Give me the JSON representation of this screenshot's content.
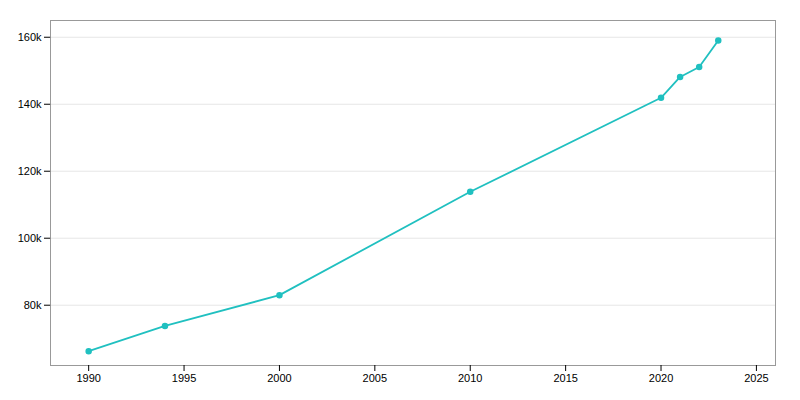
{
  "chart_data": {
    "type": "line",
    "x": [
      1990,
      1994,
      2000,
      2010,
      2020,
      2021,
      2022,
      2023
    ],
    "values": [
      66270,
      73800,
      83000,
      113883,
      141918,
      148146,
      151116,
      159020
    ],
    "color": "#20c0c0",
    "marker": "circle",
    "xlim": [
      1988,
      2026
    ],
    "xticks": [
      1990,
      1995,
      2000,
      2005,
      2010,
      2015,
      2020,
      2025
    ],
    "ylim": [
      62000,
      165000
    ],
    "yticks": [
      {
        "value": 80000,
        "label": "80k"
      },
      {
        "value": 100000,
        "label": "100k"
      },
      {
        "value": 120000,
        "label": "120k"
      },
      {
        "value": 140000,
        "label": "140k"
      },
      {
        "value": 160000,
        "label": "160k"
      }
    ],
    "grid": true
  }
}
